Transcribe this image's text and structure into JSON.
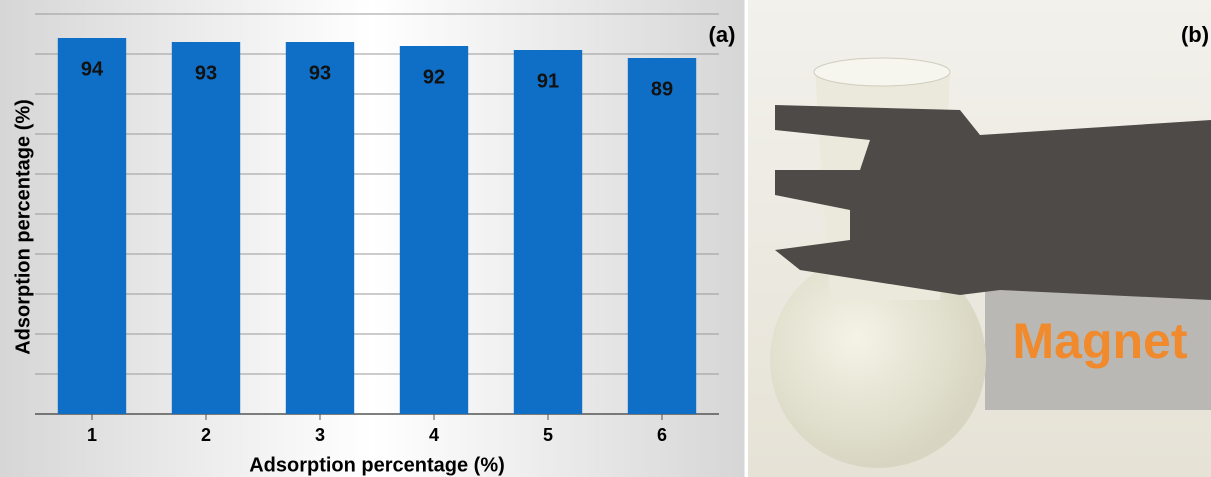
{
  "chart_data": {
    "type": "bar",
    "xlabel": "Adsorption percentage (%)",
    "ylabel": "Adsorption percentage (%)",
    "categories": [
      "1",
      "2",
      "3",
      "4",
      "5",
      "6"
    ],
    "values": [
      94,
      93,
      93,
      92,
      91,
      89
    ],
    "color": "#0f6fc6",
    "ylim": [
      0,
      100
    ],
    "yticks": [
      0,
      10,
      20,
      30,
      40,
      50,
      60,
      70,
      80,
      90,
      100
    ],
    "grid": true
  },
  "panels": [
    "(a)",
    "(b)"
  ],
  "photo": {
    "label": "Magnet"
  }
}
